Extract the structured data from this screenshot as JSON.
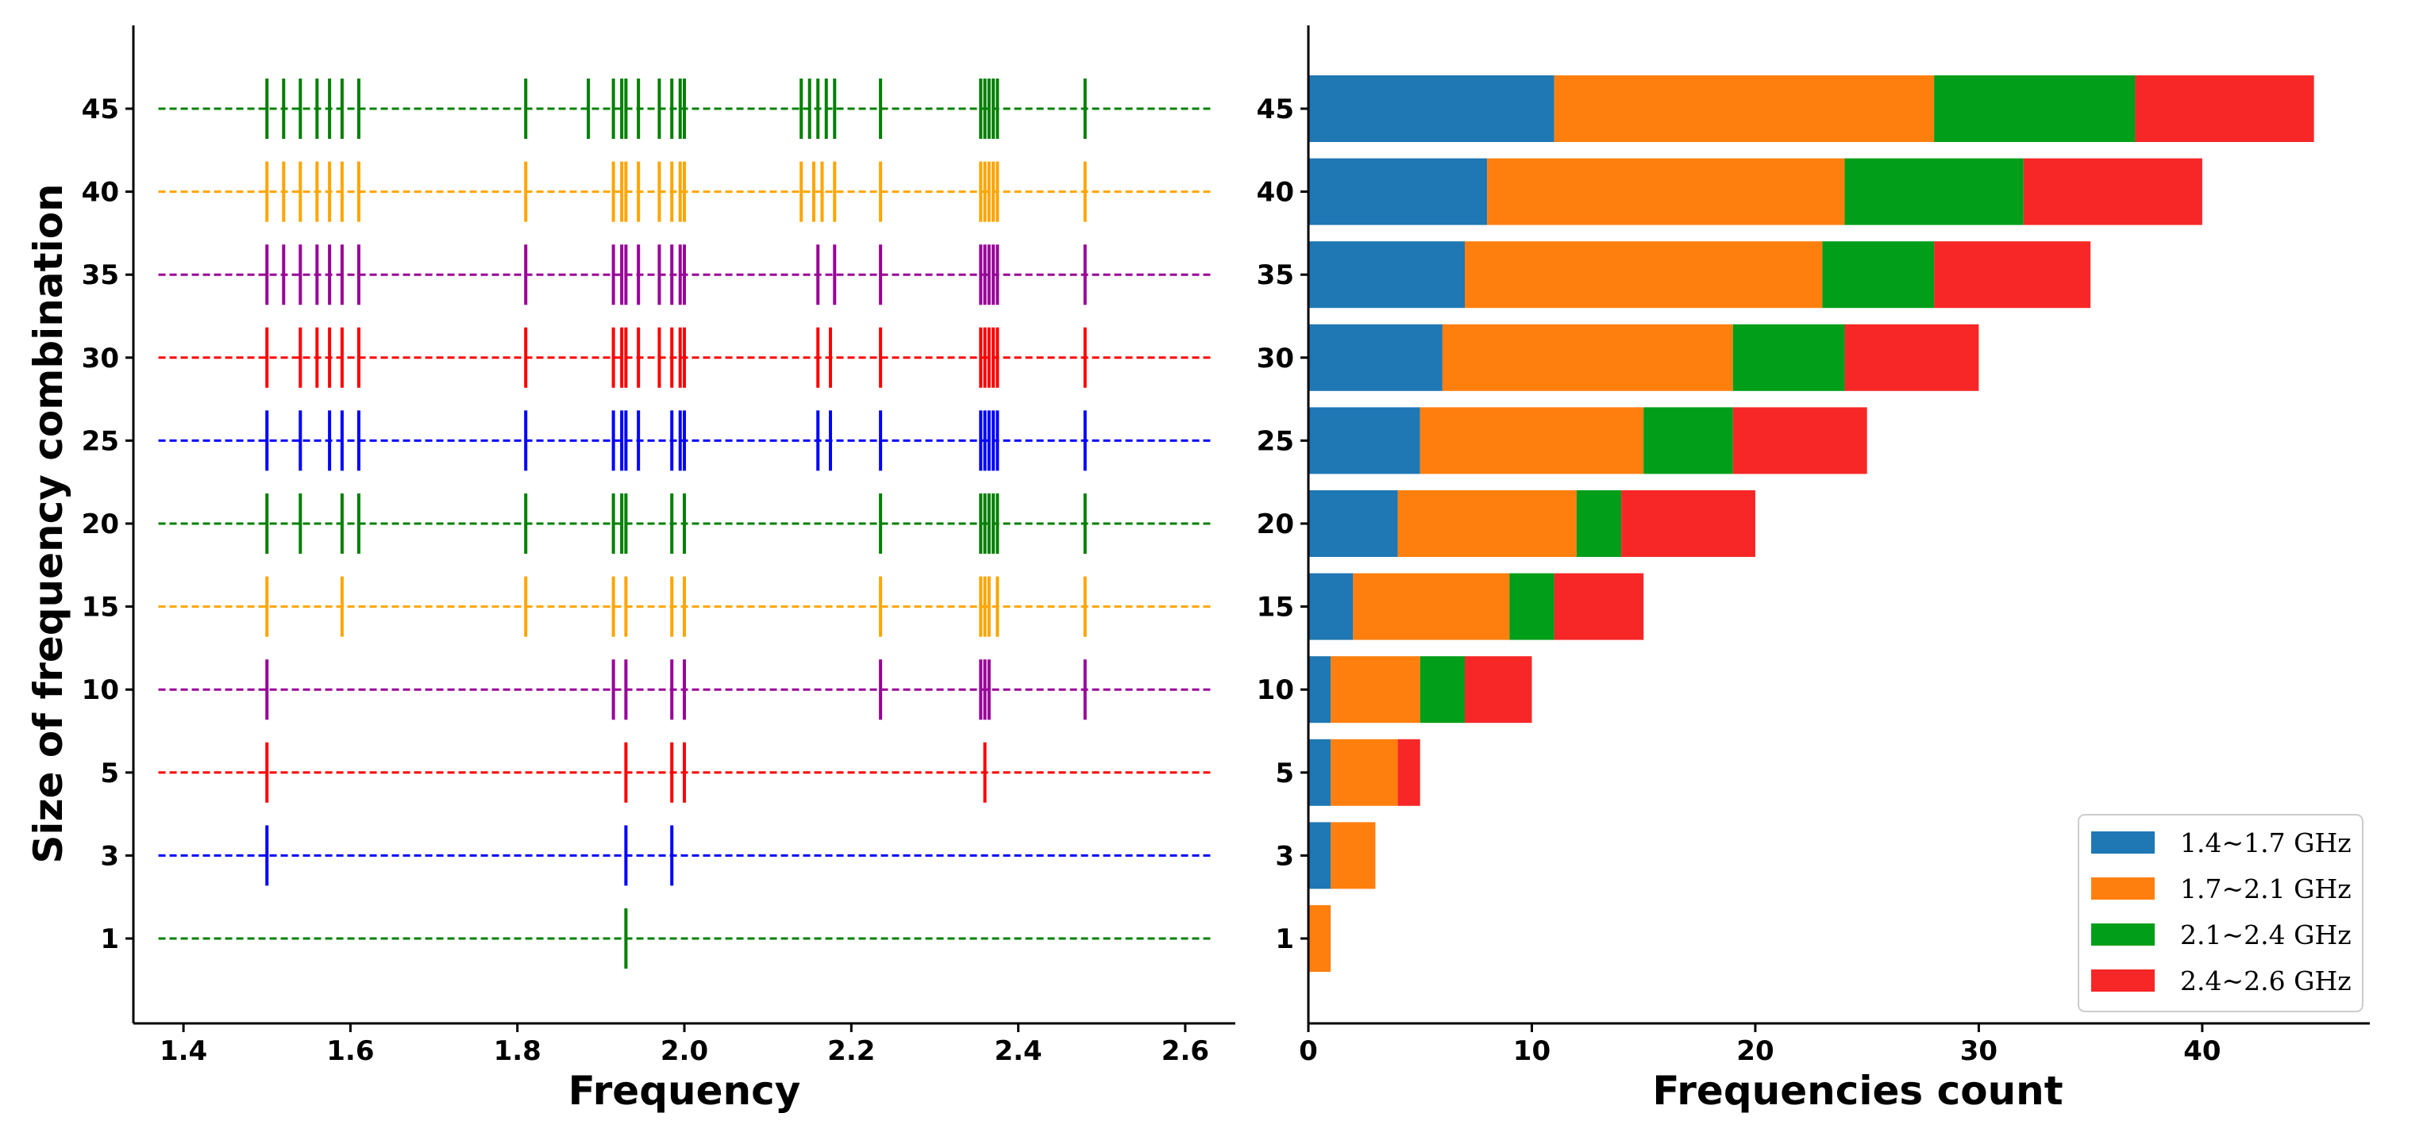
{
  "chart_data": [
    {
      "type": "eventplot",
      "title": "",
      "xlabel": "Frequency",
      "ylabel": "Size of frequency combination",
      "xlim": [
        1.34,
        2.66
      ],
      "xticks": [
        1.4,
        1.6,
        1.8,
        2.0,
        2.2,
        2.4,
        2.6
      ],
      "xtick_labels": [
        "1.4",
        "1.6",
        "1.8",
        "2.0",
        "2.2",
        "2.4",
        "2.6"
      ],
      "grid": false,
      "series": [
        {
          "name": "1",
          "color": "#008000",
          "events": [
            1.93
          ]
        },
        {
          "name": "3",
          "color": "#0000ff",
          "events": [
            1.5,
            1.93,
            1.985
          ]
        },
        {
          "name": "5",
          "color": "#ff0000",
          "events": [
            1.5,
            1.93,
            1.985,
            2.0,
            2.36
          ]
        },
        {
          "name": "10",
          "color": "#990099",
          "events": [
            1.5,
            1.915,
            1.93,
            1.985,
            2.0,
            2.235,
            2.355,
            2.36,
            2.365,
            2.48
          ]
        },
        {
          "name": "15",
          "color": "#ffa500",
          "events": [
            1.5,
            1.59,
            1.81,
            1.915,
            1.93,
            1.985,
            2.0,
            2.235,
            2.355,
            2.36,
            2.365,
            2.375,
            2.48
          ]
        },
        {
          "name": "20",
          "color": "#008000",
          "events": [
            1.5,
            1.54,
            1.59,
            1.61,
            1.81,
            1.915,
            1.925,
            1.93,
            1.985,
            2.0,
            2.235,
            2.355,
            2.36,
            2.365,
            2.37,
            2.375,
            2.48
          ]
        },
        {
          "name": "25",
          "color": "#0000ff",
          "events": [
            1.5,
            1.54,
            1.575,
            1.59,
            1.61,
            1.81,
            1.915,
            1.925,
            1.93,
            1.945,
            1.985,
            1.995,
            2.0,
            2.16,
            2.175,
            2.235,
            2.355,
            2.36,
            2.365,
            2.37,
            2.375,
            2.48
          ]
        },
        {
          "name": "30",
          "color": "#ff0000",
          "events": [
            1.5,
            1.54,
            1.56,
            1.575,
            1.59,
            1.61,
            1.81,
            1.915,
            1.925,
            1.93,
            1.945,
            1.97,
            1.985,
            1.995,
            2.0,
            2.16,
            2.175,
            2.235,
            2.355,
            2.36,
            2.365,
            2.37,
            2.375,
            2.48
          ]
        },
        {
          "name": "35",
          "color": "#990099",
          "events": [
            1.5,
            1.52,
            1.54,
            1.56,
            1.575,
            1.59,
            1.61,
            1.81,
            1.915,
            1.925,
            1.93,
            1.945,
            1.97,
            1.985,
            1.995,
            2.0,
            2.16,
            2.18,
            2.235,
            2.355,
            2.36,
            2.365,
            2.37,
            2.375,
            2.48
          ]
        },
        {
          "name": "40",
          "color": "#ffa500",
          "events": [
            1.5,
            1.52,
            1.54,
            1.56,
            1.575,
            1.59,
            1.61,
            1.81,
            1.915,
            1.925,
            1.93,
            1.945,
            1.97,
            1.985,
            1.995,
            2.0,
            2.14,
            2.155,
            2.165,
            2.18,
            2.235,
            2.355,
            2.36,
            2.365,
            2.37,
            2.375,
            2.48
          ]
        },
        {
          "name": "45",
          "color": "#008000",
          "events": [
            1.5,
            1.52,
            1.54,
            1.56,
            1.575,
            1.59,
            1.61,
            1.81,
            1.885,
            1.915,
            1.925,
            1.93,
            1.945,
            1.97,
            1.985,
            1.995,
            2.0,
            2.14,
            2.15,
            2.16,
            2.17,
            2.18,
            2.235,
            2.355,
            2.36,
            2.365,
            2.37,
            2.375,
            2.48
          ]
        }
      ]
    },
    {
      "type": "bar",
      "orientation": "horizontal",
      "stacked": true,
      "title": "",
      "xlabel": "Frequencies count",
      "ylabel": "",
      "xlim": [
        0,
        47.5
      ],
      "xticks": [
        0,
        10,
        20,
        30,
        40
      ],
      "xtick_labels": [
        "0",
        "10",
        "20",
        "30",
        "40"
      ],
      "grid": false,
      "legend_position": "bottom-right",
      "categories": [
        "1",
        "3",
        "5",
        "10",
        "15",
        "20",
        "25",
        "30",
        "35",
        "40",
        "45"
      ],
      "series": [
        {
          "name": "1.4~1.7 GHz",
          "color": "#1f77b4",
          "values": [
            0,
            1,
            1,
            1,
            2,
            4,
            5,
            6,
            7,
            8,
            11
          ]
        },
        {
          "name": "1.7~2.1 GHz",
          "color": "#ff7f0e",
          "values": [
            1,
            2,
            3,
            4,
            7,
            8,
            10,
            13,
            16,
            16,
            17
          ]
        },
        {
          "name": "2.1~2.4 GHz",
          "color": "#009e19",
          "values": [
            0,
            0,
            0,
            2,
            2,
            2,
            4,
            5,
            5,
            8,
            9
          ]
        },
        {
          "name": "2.4~2.6 GHz",
          "color": "#f72727",
          "values": [
            0,
            0,
            1,
            3,
            4,
            6,
            6,
            6,
            7,
            8,
            8
          ]
        }
      ]
    }
  ]
}
